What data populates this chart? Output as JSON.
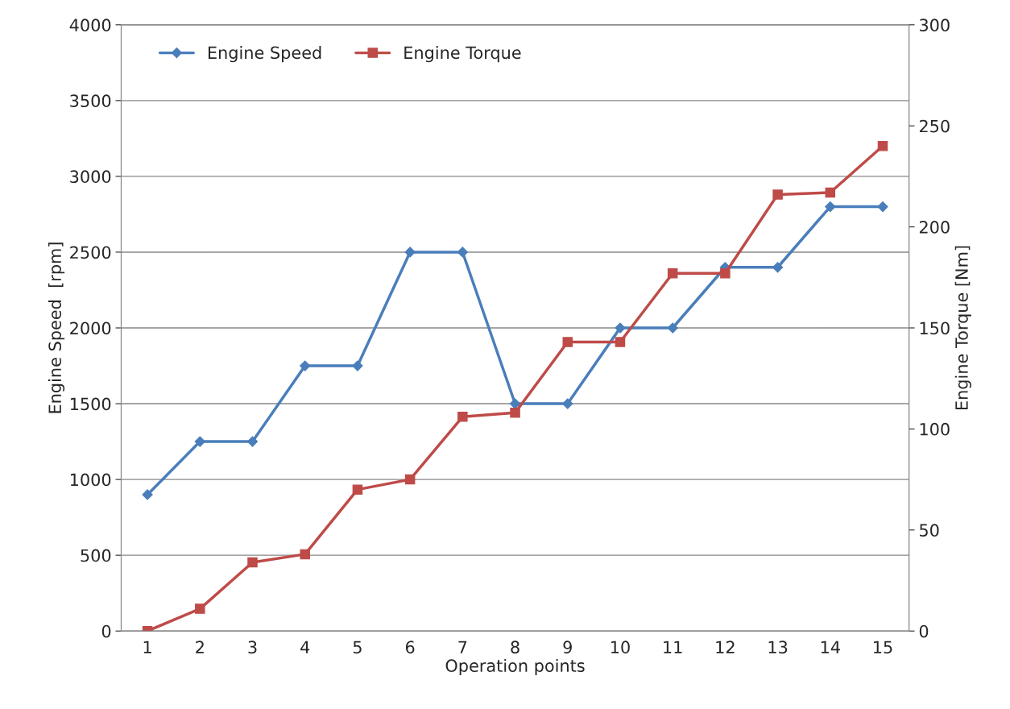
{
  "chart_data": {
    "type": "line",
    "xlabel": "Operation points",
    "ylabel": "Engine Speed  [rpm]",
    "y2label": "Engine Torque [Nm]",
    "categories": [
      "1",
      "2",
      "3",
      "4",
      "5",
      "6",
      "7",
      "8",
      "9",
      "10",
      "11",
      "12",
      "13",
      "14",
      "15"
    ],
    "series": [
      {
        "name": "Engine Speed",
        "color": "#4a7ebb",
        "marker": "diamond",
        "values": [
          900,
          1250,
          1250,
          1750,
          1750,
          2500,
          2500,
          1500,
          1500,
          2000,
          2000,
          2400,
          2400,
          2800,
          2800
        ]
      },
      {
        "name": "Engine Torque",
        "color": "#be4b48",
        "marker": "square",
        "axis": "y2",
        "values": [
          0,
          11,
          34,
          38,
          70,
          75,
          106,
          108,
          143,
          143,
          177,
          177,
          216,
          217,
          240
        ]
      }
    ],
    "ylim": [
      0,
      4000
    ],
    "yticks": [
      0,
      500,
      1000,
      1500,
      2000,
      2500,
      3000,
      3500,
      4000
    ],
    "y2lim": [
      0,
      300
    ],
    "y2ticks": [
      0,
      50,
      100,
      150,
      200,
      250,
      300
    ],
    "grid": "y",
    "legend": "top left",
    "line_style": "solid"
  }
}
